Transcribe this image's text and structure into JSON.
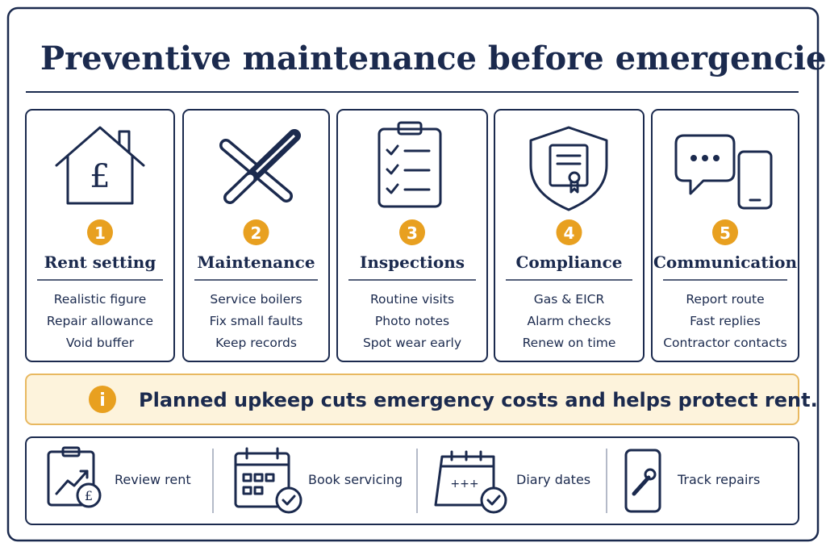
{
  "title": "Preventive maintenance before emergencies.",
  "cards": [
    {
      "number": "1",
      "heading": "Rent setting",
      "items": [
        "Realistic figure",
        "Repair allowance",
        "Void buffer"
      ]
    },
    {
      "number": "2",
      "heading": "Maintenance",
      "items": [
        "Service boilers",
        "Fix small faults",
        "Keep records"
      ]
    },
    {
      "number": "3",
      "heading": "Inspections",
      "items": [
        "Routine visits",
        "Photo notes",
        "Spot wear early"
      ]
    },
    {
      "number": "4",
      "heading": "Compliance",
      "items": [
        "Gas & EICR",
        "Alarm checks",
        "Renew on time"
      ]
    },
    {
      "number": "5",
      "heading": "Communication",
      "items": [
        "Report route",
        "Fast replies",
        "Contractor contacts"
      ]
    }
  ],
  "banner": {
    "icon": "i",
    "text": "Planned upkeep cuts emergency costs and helps protect rent."
  },
  "actions": [
    "Review rent",
    "Book servicing",
    "Diary dates",
    "Track repairs"
  ]
}
